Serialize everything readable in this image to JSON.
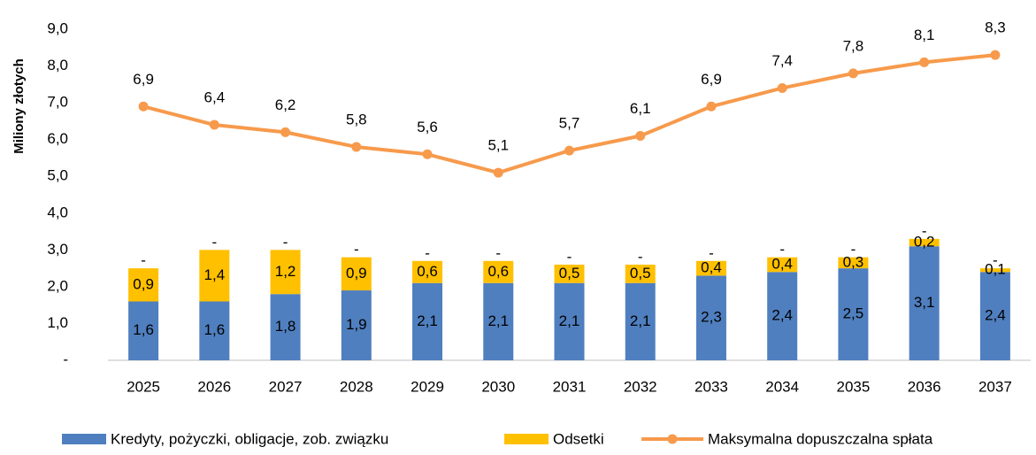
{
  "chart_data": {
    "type": "bar",
    "stacked": true,
    "y_label": "Miliony złotych",
    "categories": [
      "2025",
      "2026",
      "2027",
      "2028",
      "2029",
      "2030",
      "2031",
      "2032",
      "2033",
      "2034",
      "2035",
      "2036",
      "2037"
    ],
    "series": [
      {
        "name": "Kredyty, pożyczki, obligacje, zob. związku",
        "color": "#4f7fbf",
        "values": [
          1.6,
          1.6,
          1.8,
          1.9,
          2.1,
          2.1,
          2.1,
          2.1,
          2.3,
          2.4,
          2.5,
          3.1,
          2.4
        ],
        "value_labels": [
          "1,6",
          "1,6",
          "1,8",
          "1,9",
          "2,1",
          "2,1",
          "2,1",
          "2,1",
          "2,3",
          "2,4",
          "2,5",
          "3,1",
          "2,4"
        ]
      },
      {
        "name": "Odsetki",
        "color": "#ffc000",
        "values": [
          0.9,
          1.4,
          1.2,
          0.9,
          0.6,
          0.6,
          0.5,
          0.5,
          0.4,
          0.4,
          0.3,
          0.2,
          0.1
        ],
        "value_labels": [
          "0,9",
          "1,4",
          "1,2",
          "0,9",
          "0,6",
          "0,6",
          "0,5",
          "0,5",
          "0,4",
          "0,4",
          "0,3",
          "0,2",
          "0,1"
        ]
      },
      {
        "color": "#a5a5a5",
        "values": [
          0,
          0,
          0,
          0,
          0,
          0,
          0,
          0,
          0,
          0,
          0,
          0,
          0
        ],
        "value_labels": [
          "-",
          "-",
          "-",
          "-",
          "-",
          "-",
          "-",
          "-",
          "-",
          "-",
          "-",
          "-",
          "-"
        ]
      },
      {
        "name": "Maksymalna dopuszczalna spłata",
        "type": "line",
        "color": "#f79a4c",
        "values": [
          6.9,
          6.4,
          6.2,
          5.8,
          5.6,
          5.1,
          5.7,
          6.1,
          6.9,
          7.4,
          7.8,
          8.1,
          8.3
        ],
        "value_labels": [
          "6,9",
          "6,4",
          "6,2",
          "5,8",
          "5,6",
          "5,1",
          "5,7",
          "6,1",
          "6,9",
          "7,4",
          "7,8",
          "8,1",
          "8,3"
        ]
      }
    ],
    "ylim": [
      0,
      9
    ],
    "yticks": [
      {
        "value": 0,
        "label": "-"
      },
      {
        "value": 1,
        "label": "1,0"
      },
      {
        "value": 2,
        "label": "2,0"
      },
      {
        "value": 3,
        "label": "3,0"
      },
      {
        "value": 4,
        "label": "4,0"
      },
      {
        "value": 5,
        "label": "5,0"
      },
      {
        "value": 6,
        "label": "6,0"
      },
      {
        "value": 7,
        "label": "7,0"
      },
      {
        "value": 8,
        "label": "8,0"
      },
      {
        "value": 9,
        "label": "9,0"
      }
    ],
    "grid": false
  }
}
